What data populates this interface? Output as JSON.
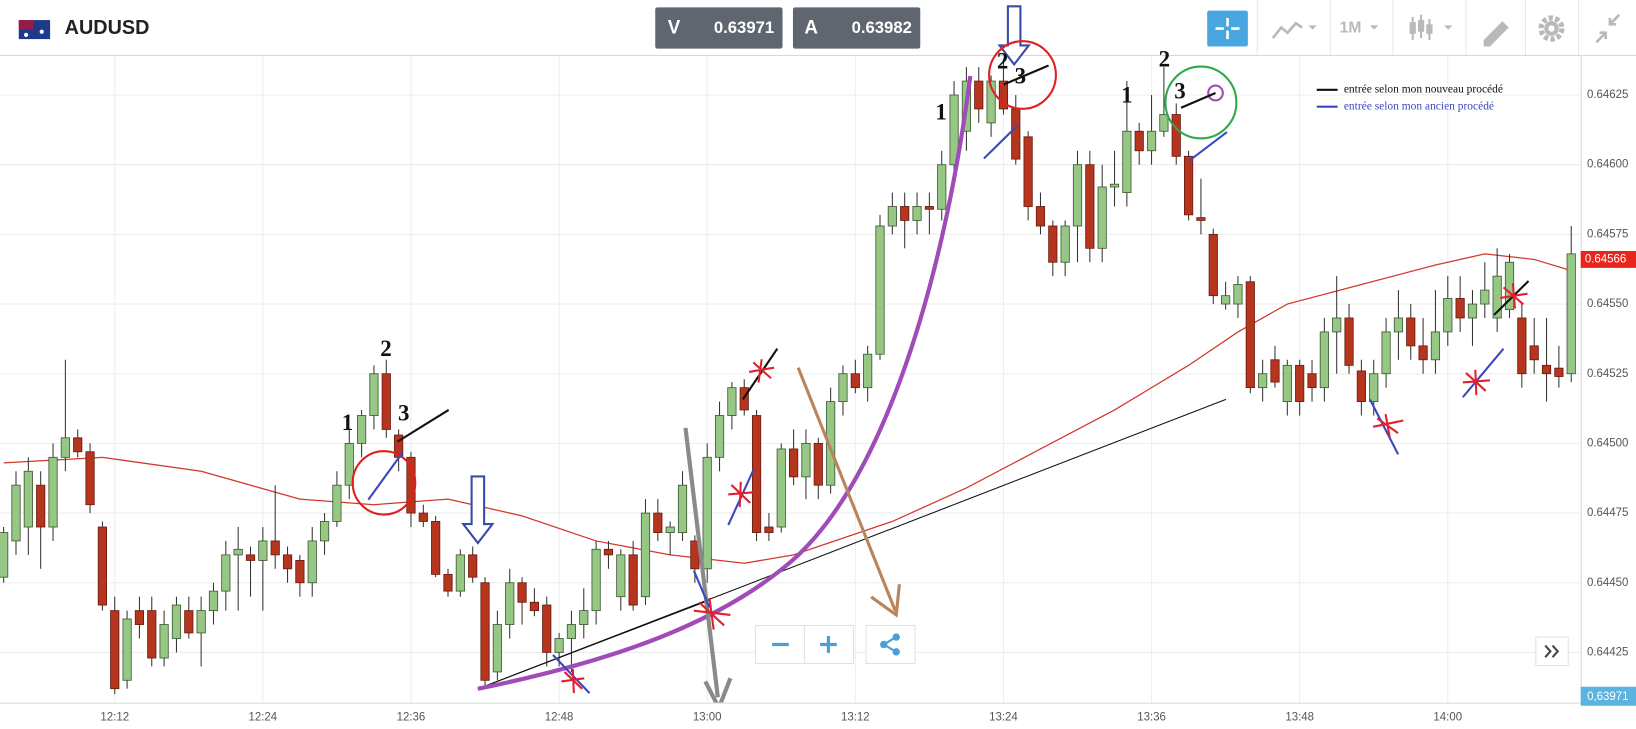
{
  "header": {
    "symbol": "AUDUSD",
    "bid_label": "V",
    "bid": 0.63971,
    "ask_label": "A",
    "ask": 0.63982,
    "timeframe": "1M"
  },
  "bottom_tag": "0,63971",
  "chart_data": {
    "type": "candlestick",
    "categories": [
      null,
      null,
      null,
      null,
      null,
      null,
      null,
      null,
      null,
      "12:12",
      null,
      null,
      null,
      null,
      null,
      null,
      null,
      null,
      null,
      null,
      null,
      "12:24",
      null,
      null,
      null,
      null,
      null,
      null,
      null,
      null,
      null,
      null,
      null,
      "12:36",
      null,
      null,
      null,
      null,
      null,
      null,
      null,
      null,
      null,
      null,
      null,
      "12:48",
      null,
      null,
      null,
      null,
      null,
      null,
      null,
      null,
      null,
      null,
      null,
      "13:00",
      null,
      null,
      null,
      null,
      null,
      null,
      null,
      null,
      null,
      null,
      null,
      "13:12",
      null,
      null,
      null,
      null,
      null,
      null,
      null,
      null,
      null,
      null,
      null,
      "13:24",
      null,
      null,
      null,
      null,
      null,
      null,
      null,
      null,
      null,
      null,
      null,
      "13:36",
      null,
      null,
      null,
      null,
      null,
      null,
      null,
      null,
      null,
      null,
      null,
      "13:48",
      null,
      null,
      null,
      null,
      null,
      null,
      null,
      null,
      null,
      null,
      null,
      "14:00",
      null,
      null,
      null,
      null,
      null,
      null,
      null,
      null,
      null,
      null
    ],
    "open": [
      0.64452,
      0.64465,
      0.6447,
      0.64485,
      0.6447,
      0.64495,
      0.64502,
      0.64497,
      0.6447,
      0.6444,
      0.64415,
      0.6444,
      0.6444,
      0.64423,
      0.6443,
      0.6444,
      0.64432,
      0.6444,
      0.64447,
      0.6446,
      0.6446,
      0.64458,
      0.64465,
      0.6446,
      0.64458,
      0.6445,
      0.64465,
      0.64472,
      0.64485,
      0.645,
      0.6451,
      0.64525,
      0.64503,
      0.64495,
      0.64475,
      0.64472,
      0.64453,
      0.64447,
      0.6446,
      0.6445,
      0.64418,
      0.64435,
      0.6445,
      0.64443,
      0.64442,
      0.64425,
      0.6443,
      0.64435,
      0.6444,
      0.64462,
      0.64445,
      0.6446,
      0.64445,
      0.64475,
      0.64468,
      0.64468,
      0.64465,
      0.64455,
      0.64495,
      0.6451,
      0.6452,
      0.6451,
      0.6447,
      0.6447,
      0.64498,
      0.64488,
      0.645,
      0.64485,
      0.64515,
      0.64525,
      0.6452,
      0.64532,
      0.64578,
      0.64585,
      0.6458,
      0.64585,
      0.64584,
      0.646,
      0.64612,
      0.6463,
      0.64615,
      0.6463,
      0.6462,
      0.6461,
      0.64585,
      0.64578,
      0.64565,
      0.64578,
      0.646,
      0.6457,
      0.64592,
      0.6459,
      0.64612,
      0.64605,
      0.64612,
      0.64618,
      0.64603,
      0.64581,
      0.64575,
      0.6455,
      0.6455,
      0.64558,
      0.6452,
      0.6453,
      0.64515,
      0.64528,
      0.64525,
      0.6452,
      0.6454,
      0.64545,
      0.64526,
      0.64515,
      0.64525,
      0.6454,
      0.64545,
      0.64535,
      0.6453,
      0.6454,
      0.64552,
      0.64545,
      0.6455,
      0.64545,
      0.64548,
      0.64545,
      0.64535,
      0.64528,
      0.64527,
      0.64525
    ],
    "high": [
      0.6447,
      0.6449,
      0.64495,
      0.6449,
      0.645,
      0.6453,
      0.64505,
      0.645,
      0.64472,
      0.64445,
      0.6444,
      0.64445,
      0.64445,
      0.6444,
      0.64445,
      0.64445,
      0.64445,
      0.6445,
      0.64465,
      0.6447,
      0.64463,
      0.6447,
      0.64485,
      0.64463,
      0.6446,
      0.6447,
      0.64475,
      0.6449,
      0.64505,
      0.64512,
      0.64528,
      0.6453,
      0.64505,
      0.64497,
      0.64478,
      0.64474,
      0.64455,
      0.64462,
      0.64463,
      0.64452,
      0.6444,
      0.64455,
      0.64452,
      0.64448,
      0.64445,
      0.64432,
      0.6444,
      0.64448,
      0.64465,
      0.64465,
      0.64462,
      0.64465,
      0.6448,
      0.6448,
      0.64472,
      0.6449,
      0.64467,
      0.645,
      0.64515,
      0.64522,
      0.64523,
      0.64512,
      0.64475,
      0.645,
      0.64505,
      0.64505,
      0.64502,
      0.6452,
      0.64528,
      0.6453,
      0.64535,
      0.64582,
      0.6459,
      0.6459,
      0.6459,
      0.6459,
      0.64605,
      0.6463,
      0.64635,
      0.64635,
      0.64632,
      0.64638,
      0.64625,
      0.64612,
      0.6459,
      0.6458,
      0.6458,
      0.64605,
      0.64605,
      0.646,
      0.64605,
      0.6463,
      0.64615,
      0.64625,
      0.64635,
      0.64622,
      0.64605,
      0.64595,
      0.64577,
      0.64558,
      0.6456,
      0.6456,
      0.6453,
      0.64535,
      0.6453,
      0.6453,
      0.6453,
      0.64545,
      0.6456,
      0.6455,
      0.6453,
      0.6453,
      0.64545,
      0.64555,
      0.6455,
      0.64545,
      0.64555,
      0.6456,
      0.6456,
      0.64555,
      0.64565,
      0.6457,
      0.64568,
      0.6455,
      0.64545,
      0.64545,
      0.64535,
      0.64578
    ],
    "low": [
      0.6445,
      0.6446,
      0.6446,
      0.64455,
      0.64465,
      0.6449,
      0.64495,
      0.64475,
      0.6444,
      0.6441,
      0.64412,
      0.6443,
      0.6442,
      0.6442,
      0.64425,
      0.6443,
      0.6442,
      0.64435,
      0.6444,
      0.6444,
      0.64445,
      0.6444,
      0.64455,
      0.6445,
      0.64445,
      0.64445,
      0.6446,
      0.6447,
      0.6448,
      0.64495,
      0.64505,
      0.64502,
      0.6449,
      0.6447,
      0.6447,
      0.64452,
      0.64445,
      0.64445,
      0.6445,
      0.64413,
      0.64415,
      0.6443,
      0.64435,
      0.64438,
      0.6442,
      0.6442,
      0.64418,
      0.6443,
      0.64435,
      0.64455,
      0.6444,
      0.6444,
      0.64442,
      0.64465,
      0.6446,
      0.64465,
      0.6445,
      0.6445,
      0.6449,
      0.64505,
      0.6451,
      0.64465,
      0.64465,
      0.64468,
      0.64485,
      0.6448,
      0.6448,
      0.64482,
      0.6451,
      0.64518,
      0.64515,
      0.6453,
      0.64575,
      0.6457,
      0.64575,
      0.64575,
      0.6458,
      0.64595,
      0.64605,
      0.64615,
      0.6461,
      0.64618,
      0.646,
      0.6458,
      0.64575,
      0.6456,
      0.6456,
      0.64565,
      0.64565,
      0.64565,
      0.64585,
      0.64585,
      0.646,
      0.646,
      0.6461,
      0.646,
      0.6458,
      0.64575,
      0.6455,
      0.64548,
      0.64545,
      0.64518,
      0.64515,
      0.6452,
      0.6451,
      0.6451,
      0.64515,
      0.64515,
      0.64525,
      0.64525,
      0.6451,
      0.6451,
      0.6452,
      0.6453,
      0.6453,
      0.64525,
      0.64525,
      0.64535,
      0.6454,
      0.64535,
      0.64545,
      0.6454,
      0.64545,
      0.6452,
      0.64525,
      0.64515,
      0.6452,
      0.64522
    ],
    "close": [
      0.64468,
      0.64485,
      0.6449,
      0.6447,
      0.64495,
      0.64502,
      0.64497,
      0.64478,
      0.64442,
      0.64412,
      0.64437,
      0.64435,
      0.64423,
      0.64435,
      0.64442,
      0.64432,
      0.6444,
      0.64447,
      0.6446,
      0.64462,
      0.64458,
      0.64465,
      0.6446,
      0.64455,
      0.6445,
      0.64465,
      0.64472,
      0.64485,
      0.645,
      0.6451,
      0.64525,
      0.64505,
      0.64495,
      0.64475,
      0.64472,
      0.64453,
      0.64447,
      0.6446,
      0.64452,
      0.64415,
      0.64435,
      0.6445,
      0.64443,
      0.6444,
      0.64425,
      0.6443,
      0.64435,
      0.6444,
      0.64462,
      0.6446,
      0.6446,
      0.64442,
      0.64475,
      0.64468,
      0.6447,
      0.64485,
      0.64455,
      0.64495,
      0.6451,
      0.6452,
      0.64512,
      0.64468,
      0.64468,
      0.64498,
      0.64488,
      0.645,
      0.64485,
      0.64515,
      0.64525,
      0.6452,
      0.64532,
      0.64578,
      0.64585,
      0.6458,
      0.64585,
      0.64584,
      0.646,
      0.64625,
      0.6463,
      0.6462,
      0.6463,
      0.6462,
      0.64602,
      0.64585,
      0.64578,
      0.64565,
      0.64578,
      0.646,
      0.6457,
      0.64592,
      0.64593,
      0.64612,
      0.64605,
      0.64612,
      0.64618,
      0.64603,
      0.64582,
      0.6458,
      0.64553,
      0.64553,
      0.64557,
      0.6452,
      0.64525,
      0.64522,
      0.64528,
      0.64515,
      0.6452,
      0.6454,
      0.64545,
      0.64528,
      0.64515,
      0.64525,
      0.6454,
      0.64545,
      0.64535,
      0.6453,
      0.6454,
      0.64552,
      0.64545,
      0.6455,
      0.64555,
      0.6456,
      0.64565,
      0.64525,
      0.6453,
      0.64525,
      0.64524,
      0.64568
    ],
    "up_color": "#97c784",
    "down_color": "#b5351f",
    "moving_average": {
      "color": "#d2382c",
      "x": [
        0,
        8,
        16,
        24,
        30,
        36,
        42,
        48,
        54,
        60,
        64,
        68,
        72,
        78,
        84,
        90,
        96,
        100,
        104,
        110,
        116,
        120,
        124,
        127
      ],
      "values": [
        0.64493,
        0.64495,
        0.6449,
        0.6448,
        0.64478,
        0.6448,
        0.64474,
        0.64465,
        0.6446,
        0.64457,
        0.6446,
        0.64466,
        0.64472,
        0.64484,
        0.64498,
        0.64512,
        0.64528,
        0.6454,
        0.6455,
        0.64557,
        0.64564,
        0.64568,
        0.64566,
        0.64562
      ]
    },
    "ylim": [
      0.64407,
      0.64639
    ],
    "yticks": [
      {
        "value": 0.64425,
        "label": "0.64425"
      },
      {
        "value": 0.6445,
        "label": "0.64450"
      },
      {
        "value": 0.64475,
        "label": "0.64475"
      },
      {
        "value": 0.645,
        "label": "0.64500"
      },
      {
        "value": 0.64525,
        "label": "0.64525"
      },
      {
        "value": 0.6455,
        "label": "0.64550"
      },
      {
        "value": 0.64575,
        "label": "0.64575"
      },
      {
        "value": 0.646,
        "label": "0.64600"
      },
      {
        "value": 0.64625,
        "label": "0.64625"
      }
    ],
    "grid": true,
    "price_tag": {
      "value": 0.64566,
      "label": "0.64566",
      "color": "#e8261c"
    },
    "annotations": [
      "1",
      "2",
      "3",
      "1",
      "2",
      "3",
      "1",
      "2",
      "3"
    ],
    "legend_notes": [
      "entrée selon mon nouveau procédé",
      "entrée selon mon ancien procédé"
    ]
  }
}
